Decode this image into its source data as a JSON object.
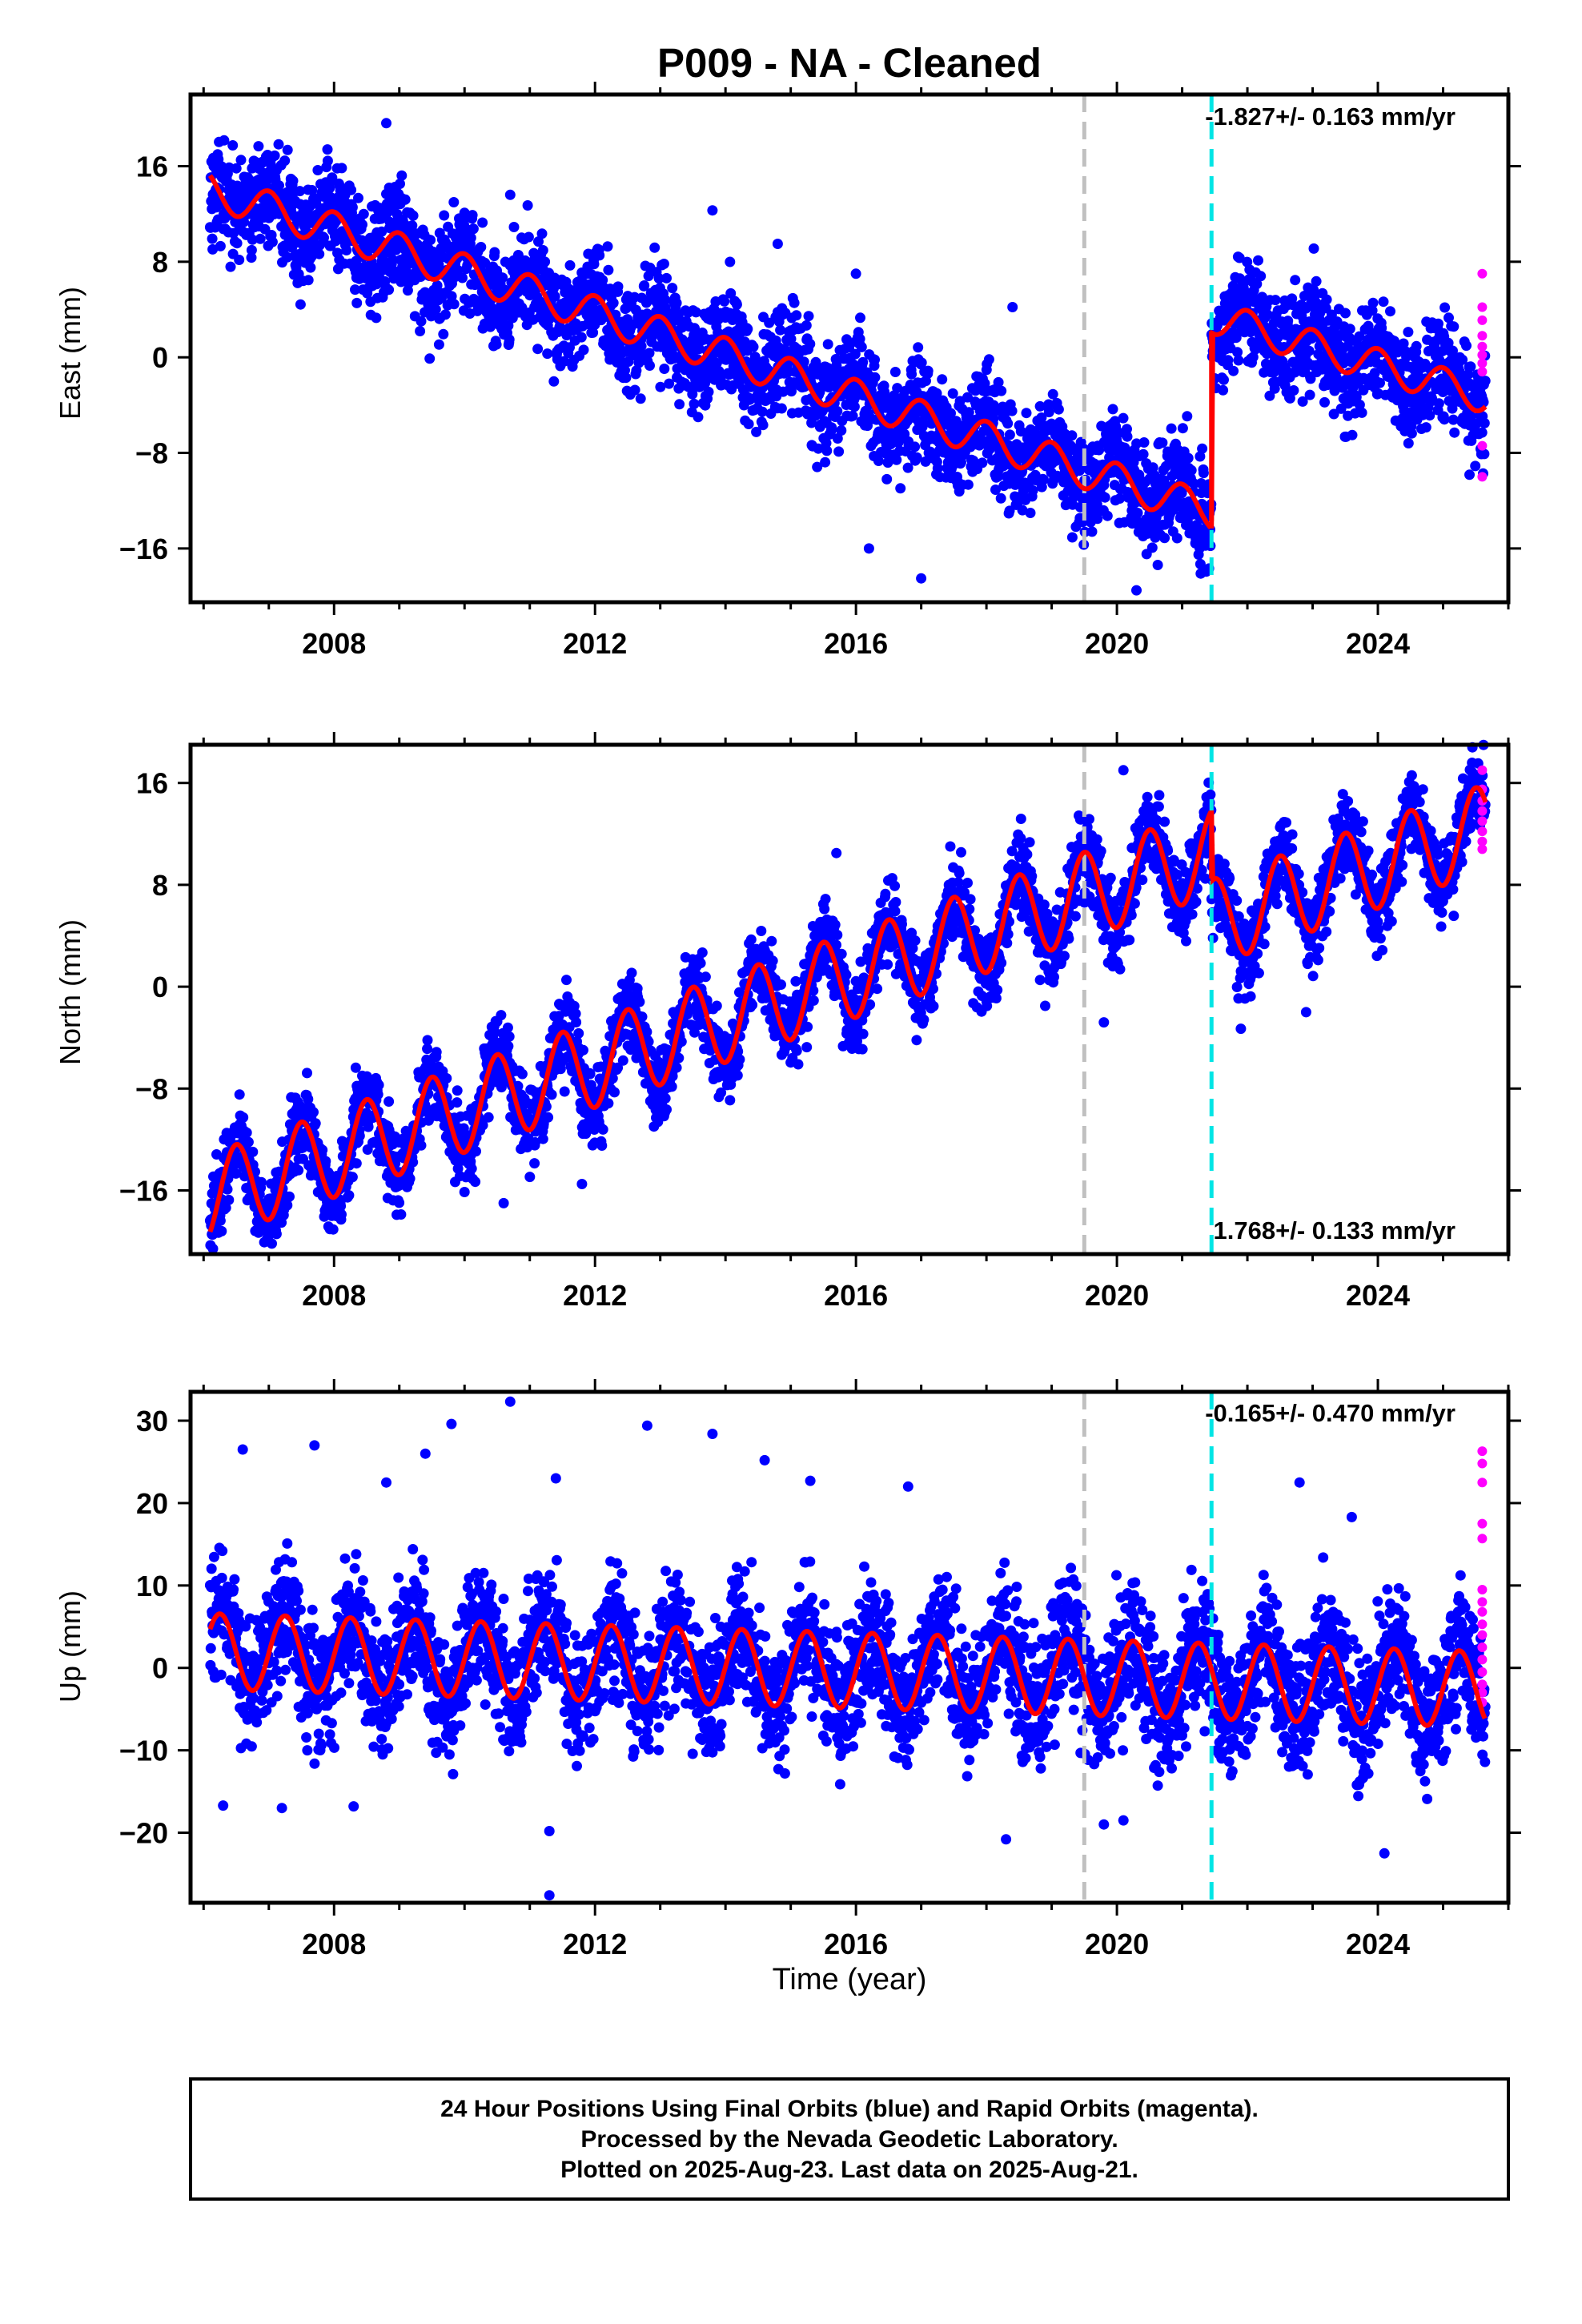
{
  "title": "P009  - NA - Cleaned",
  "xlabel": "Time (year)",
  "colors": {
    "final_orbits": "#0000ff",
    "rapid_orbits": "#ff00ff",
    "model": "#ff0000",
    "event_gray": "#c0c0c0",
    "event_cyan": "#00e5e5"
  },
  "note_lines": [
    "24 Hour Positions Using Final Orbits (blue) and Rapid Orbits (magenta).",
    "Processed by the Nevada Geodetic Laboratory.",
    "Plotted on 2025-Aug-23. Last data on 2025-Aug-21."
  ],
  "chart_data": [
    {
      "type": "scatter",
      "component": "east",
      "ylabel": "East (mm)",
      "rate_text": "-1.827+/- 0.163 mm/yr",
      "rate_position": "top-right",
      "xlim": [
        2005.8,
        2026.0
      ],
      "ylim": [
        -20.5,
        22
      ],
      "x_ticks": [
        2008,
        2012,
        2016,
        2020,
        2024
      ],
      "y_ticks": [
        -16,
        -8,
        0,
        8,
        16
      ],
      "event_lines": [
        2019.5,
        2021.45
      ],
      "model_segments": [
        {
          "x_start": 2006.1,
          "x_end": 2021.45,
          "y_start": 14.0,
          "y_end": -12.9,
          "seasonal_amplitude": 1.5,
          "seasonal_phase": 0.0
        },
        {
          "x_start": 2021.45,
          "x_end": 2025.65,
          "y_start": 3.4,
          "y_end": -3.3,
          "seasonal_amplitude": 1.4,
          "seasonal_phase": 0.0
        }
      ],
      "offset": {
        "x": 2021.45,
        "from": -13.7,
        "to": 2.2
      },
      "point_scatter": 2.2,
      "rapid_points": {
        "x": 2025.6,
        "y_values": [
          7.0,
          4.2,
          3.1,
          1.8,
          0.9,
          0.2,
          -0.5,
          -1.2,
          -7.4,
          -10.0
        ]
      },
      "outliers": [
        [
          2008.8,
          19.6
        ],
        [
          2010.7,
          13.6
        ],
        [
          2013.8,
          12.3
        ],
        [
          2014.8,
          9.5
        ],
        [
          2016.0,
          7.0
        ],
        [
          2017.0,
          -18.5
        ],
        [
          2016.2,
          -16.0
        ],
        [
          2020.3,
          -19.5
        ],
        [
          2018.4,
          4.2
        ]
      ]
    },
    {
      "type": "scatter",
      "component": "north",
      "ylabel": "North (mm)",
      "rate_text": "1.768+/- 0.133 mm/yr",
      "rate_position": "bottom-right",
      "xlim": [
        2005.8,
        2026.0
      ],
      "ylim": [
        -21,
        19
      ],
      "x_ticks": [
        2008,
        2012,
        2016,
        2020,
        2024
      ],
      "y_ticks": [
        -16,
        -8,
        0,
        8,
        16
      ],
      "event_lines": [
        2019.5,
        2021.45
      ],
      "model_segments": [
        {
          "x_start": 2006.1,
          "x_end": 2021.45,
          "y_start": -16.5,
          "y_end": 10.6,
          "seasonal_amplitude": 3.4,
          "seasonal_phase": 0.5
        },
        {
          "x_start": 2021.45,
          "x_end": 2025.65,
          "y_start": 5.0,
          "y_end": 12.5,
          "seasonal_amplitude": 3.4,
          "seasonal_phase": 0.5
        }
      ],
      "offset": {
        "x": 2021.45,
        "from": 13.7,
        "to": 8.5
      },
      "point_scatter": 1.6,
      "rapid_points": {
        "x": 2025.6,
        "y_values": [
          17.0,
          15.5,
          14.6,
          13.8,
          13.0,
          12.2,
          11.4,
          10.8
        ]
      },
      "outliers": [
        [
          2015.7,
          10.5
        ],
        [
          2018.9,
          -1.5
        ],
        [
          2019.8,
          -2.8
        ],
        [
          2021.9,
          -3.3
        ],
        [
          2022.9,
          -2.0
        ],
        [
          2011.8,
          -15.5
        ],
        [
          2010.6,
          -17.0
        ],
        [
          2020.1,
          17.0
        ]
      ]
    },
    {
      "type": "scatter",
      "component": "up",
      "ylabel": "Up (mm)",
      "rate_text": "-0.165+/- 0.470 mm/yr",
      "rate_position": "top-right",
      "xlim": [
        2005.8,
        2026.0
      ],
      "ylim": [
        -28.5,
        33.5
      ],
      "x_ticks": [
        2008,
        2012,
        2016,
        2020,
        2024
      ],
      "y_ticks": [
        -20,
        -10,
        0,
        10,
        20,
        30
      ],
      "event_lines": [
        2019.5,
        2021.45
      ],
      "model_segments": [
        {
          "x_start": 2006.1,
          "x_end": 2025.65,
          "y_start": 2.0,
          "y_end": -2.6,
          "seasonal_amplitude": 4.6,
          "seasonal_phase": 0.25
        }
      ],
      "point_scatter": 3.9,
      "rapid_points": {
        "x": 2025.6,
        "y_values": [
          26.3,
          24.8,
          22.5,
          17.5,
          15.7,
          9.5,
          8.0,
          6.8,
          5.3,
          4.0,
          2.5,
          1.0,
          -0.5,
          -2.0,
          -3.0,
          -4.2
        ]
      },
      "outliers": [
        [
          2006.3,
          -16.7
        ],
        [
          2006.6,
          26.5
        ],
        [
          2007.7,
          27.0
        ],
        [
          2008.8,
          22.5
        ],
        [
          2009.4,
          26.0
        ],
        [
          2009.8,
          29.6
        ],
        [
          2010.7,
          32.3
        ],
        [
          2011.4,
          23.0
        ],
        [
          2011.3,
          -27.6
        ],
        [
          2011.3,
          -19.8
        ],
        [
          2012.8,
          29.4
        ],
        [
          2013.8,
          28.4
        ],
        [
          2014.6,
          25.2
        ],
        [
          2015.3,
          22.7
        ],
        [
          2016.8,
          22.0
        ],
        [
          2018.3,
          -20.8
        ],
        [
          2019.8,
          -19.0
        ],
        [
          2020.1,
          -18.5
        ],
        [
          2022.8,
          22.5
        ],
        [
          2023.6,
          18.3
        ],
        [
          2024.1,
          -22.5
        ],
        [
          2007.2,
          -17.0
        ],
        [
          2008.3,
          -16.8
        ]
      ]
    }
  ]
}
